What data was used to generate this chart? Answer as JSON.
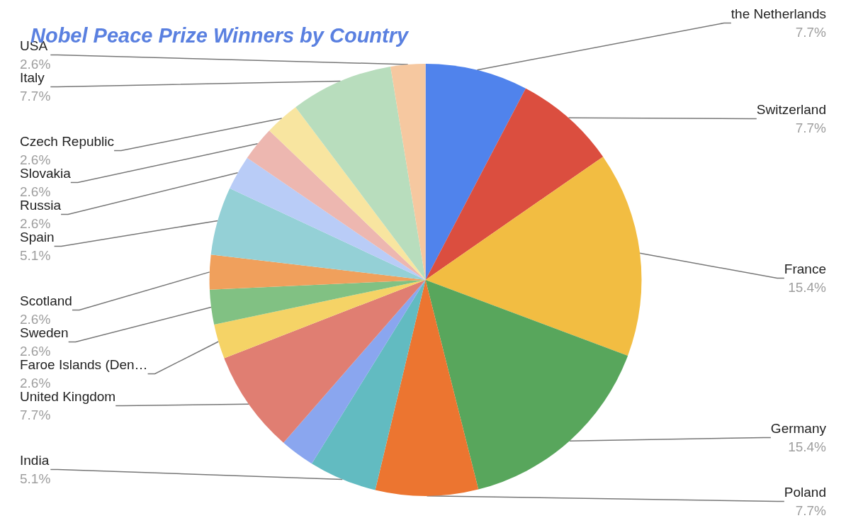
{
  "chart_data": {
    "type": "pie",
    "title": "Nobel Peace Prize Winners by Country",
    "categories": [
      "the Netherlands",
      "Switzerland",
      "France",
      "Germany",
      "Poland",
      "India",
      null,
      "United Kingdom",
      "Faroe Islands (Den…",
      "Sweden",
      "Scotland",
      "Spain",
      "Russia",
      "Slovakia",
      "Czech Republic",
      "Italy",
      "USA"
    ],
    "values": [
      7.7,
      7.7,
      15.4,
      15.4,
      7.7,
      5.1,
      2.6,
      7.7,
      2.6,
      2.6,
      2.6,
      5.1,
      2.6,
      2.6,
      2.6,
      7.7,
      2.6
    ],
    "value_labels": [
      "7.7%",
      "7.7%",
      "15.4%",
      "15.4%",
      "7.7%",
      "5.1%",
      null,
      "7.7%",
      "2.6%",
      "2.6%",
      "2.6%",
      "5.1%",
      "2.6%",
      "2.6%",
      "2.6%",
      "7.7%",
      "2.6%"
    ],
    "colors": [
      "#5083ec",
      "#db4e3f",
      "#f2bd42",
      "#58a65c",
      "#ec7530",
      "#62bbc1",
      "#8aa6ef",
      "#e07e72",
      "#f5d366",
      "#81c183",
      "#f0a05c",
      "#94d0d6",
      "#b9ccf7",
      "#edb7b0",
      "#f8e5a0",
      "#b8ddbd",
      "#f6c8a0"
    ],
    "legend": false
  }
}
